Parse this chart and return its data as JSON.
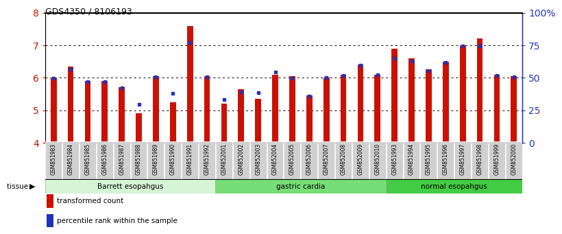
{
  "title": "GDS4350 / 8106193",
  "samples": [
    "GSM851983",
    "GSM851984",
    "GSM851985",
    "GSM851986",
    "GSM851987",
    "GSM851988",
    "GSM851989",
    "GSM851990",
    "GSM851991",
    "GSM851992",
    "GSM852001",
    "GSM852002",
    "GSM852003",
    "GSM852004",
    "GSM852005",
    "GSM852006",
    "GSM852007",
    "GSM852008",
    "GSM852009",
    "GSM852010",
    "GSM851993",
    "GSM851994",
    "GSM851995",
    "GSM851996",
    "GSM851997",
    "GSM851998",
    "GSM851999",
    "GSM852000"
  ],
  "red_values": [
    6.0,
    6.35,
    5.9,
    5.9,
    5.7,
    4.9,
    6.05,
    5.25,
    7.6,
    6.05,
    5.2,
    5.65,
    5.35,
    6.1,
    6.05,
    5.45,
    6.0,
    6.1,
    6.4,
    6.1,
    6.9,
    6.6,
    6.25,
    6.5,
    7.0,
    7.2,
    6.1,
    6.05
  ],
  "blue_values": [
    5.98,
    6.25,
    5.88,
    5.88,
    5.68,
    5.18,
    6.02,
    5.53,
    7.08,
    6.02,
    5.33,
    5.56,
    5.55,
    6.18,
    5.98,
    5.44,
    6.0,
    6.08,
    6.38,
    6.1,
    6.6,
    6.52,
    6.22,
    6.48,
    6.98,
    6.98,
    6.08,
    6.02
  ],
  "groups": [
    {
      "label": "Barrett esopahgus",
      "start": 0,
      "end": 10,
      "color": "#d5f5d5"
    },
    {
      "label": "gastric cardia",
      "start": 10,
      "end": 20,
      "color": "#77dd77"
    },
    {
      "label": "normal esopahgus",
      "start": 20,
      "end": 28,
      "color": "#44cc44"
    }
  ],
  "ylim_left": [
    4,
    8
  ],
  "ylim_right": [
    0,
    100
  ],
  "yticks_left": [
    4,
    5,
    6,
    7,
    8
  ],
  "yticks_right": [
    0,
    25,
    50,
    75,
    100
  ],
  "ytick_labels_right": [
    "0",
    "25",
    "50",
    "75",
    "100%"
  ],
  "bar_color": "#cc1100",
  "dot_color": "#2233bb",
  "background_color": "#ffffff",
  "yaxis_left_color": "#cc1100",
  "yaxis_right_color": "#2233bb",
  "bar_width": 0.35
}
